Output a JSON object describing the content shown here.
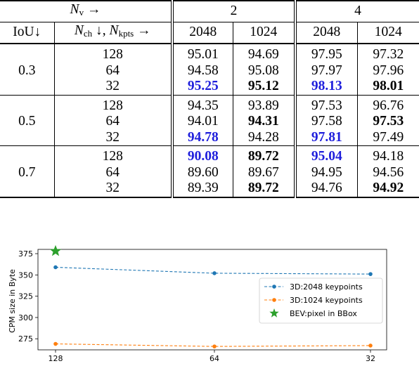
{
  "table": {
    "header1": {
      "nv_symbol": "N",
      "nv_sub": "v",
      "nv_arrow": " →",
      "group_a": "2",
      "group_b": "4"
    },
    "header2": {
      "iou": "IoU↓",
      "nch_symbol": "N",
      "nch_sub": "ch",
      "nch_arrow": " ↓, ",
      "nkpts_symbol": "N",
      "nkpts_sub": "kpts",
      "nkpts_arrow": " →",
      "cols": [
        "2048",
        "1024",
        "2048",
        "1024"
      ]
    },
    "groups": [
      {
        "iou": "0.3",
        "rows": [
          {
            "nch": "128",
            "vals": [
              {
                "v": "95.01",
                "s": ""
              },
              {
                "v": "94.69",
                "s": ""
              },
              {
                "v": "97.95",
                "s": ""
              },
              {
                "v": "97.32",
                "s": ""
              }
            ]
          },
          {
            "nch": "64",
            "vals": [
              {
                "v": "94.58",
                "s": ""
              },
              {
                "v": "95.08",
                "s": ""
              },
              {
                "v": "97.97",
                "s": ""
              },
              {
                "v": "97.96",
                "s": ""
              }
            ]
          },
          {
            "nch": "32",
            "vals": [
              {
                "v": "95.25",
                "s": "blue"
              },
              {
                "v": "95.12",
                "s": "bold"
              },
              {
                "v": "98.13",
                "s": "blue"
              },
              {
                "v": "98.01",
                "s": "bold"
              }
            ]
          }
        ]
      },
      {
        "iou": "0.5",
        "rows": [
          {
            "nch": "128",
            "vals": [
              {
                "v": "94.35",
                "s": ""
              },
              {
                "v": "93.89",
                "s": ""
              },
              {
                "v": "97.53",
                "s": ""
              },
              {
                "v": "96.76",
                "s": ""
              }
            ]
          },
          {
            "nch": "64",
            "vals": [
              {
                "v": "94.01",
                "s": ""
              },
              {
                "v": "94.31",
                "s": "bold"
              },
              {
                "v": "97.58",
                "s": ""
              },
              {
                "v": "97.53",
                "s": "bold"
              }
            ]
          },
          {
            "nch": "32",
            "vals": [
              {
                "v": "94.78",
                "s": "blue"
              },
              {
                "v": "94.28",
                "s": ""
              },
              {
                "v": "97.81",
                "s": "blue"
              },
              {
                "v": "97.49",
                "s": ""
              }
            ]
          }
        ]
      },
      {
        "iou": "0.7",
        "rows": [
          {
            "nch": "128",
            "vals": [
              {
                "v": "90.08",
                "s": "blue"
              },
              {
                "v": "89.72",
                "s": "bold"
              },
              {
                "v": "95.04",
                "s": "blue"
              },
              {
                "v": "94.18",
                "s": ""
              }
            ]
          },
          {
            "nch": "64",
            "vals": [
              {
                "v": "89.60",
                "s": ""
              },
              {
                "v": "89.67",
                "s": ""
              },
              {
                "v": "94.95",
                "s": ""
              },
              {
                "v": "94.56",
                "s": ""
              }
            ]
          },
          {
            "nch": "32",
            "vals": [
              {
                "v": "89.39",
                "s": ""
              },
              {
                "v": "89.72",
                "s": "bold"
              },
              {
                "v": "94.76",
                "s": ""
              },
              {
                "v": "94.92",
                "s": "bold"
              }
            ]
          }
        ]
      }
    ],
    "colors": {
      "highlight_blue": "#1f1fdc"
    }
  },
  "chart_data": {
    "type": "line",
    "title": "",
    "xlabel": "",
    "ylabel": "CPM size in Byte",
    "categories": [
      "128",
      "64",
      "32"
    ],
    "ylim": [
      262,
      380
    ],
    "yticks": [
      "275",
      "300",
      "325",
      "350",
      "375"
    ],
    "grid": false,
    "legend_position": "right",
    "series": [
      {
        "name": "3D:2048 keypoints",
        "values": [
          359,
          352,
          351
        ],
        "color": "#1f77b4",
        "style": "dashed-dot-marker"
      },
      {
        "name": "3D:1024 keypoints",
        "values": [
          269,
          266,
          267
        ],
        "color": "#ff7f0e",
        "style": "dashed-dot-marker"
      },
      {
        "name": "BEV:pixel in BBox",
        "values": [
          378,
          null,
          null
        ],
        "color": "#2ca02c",
        "style": "star-marker"
      }
    ]
  }
}
